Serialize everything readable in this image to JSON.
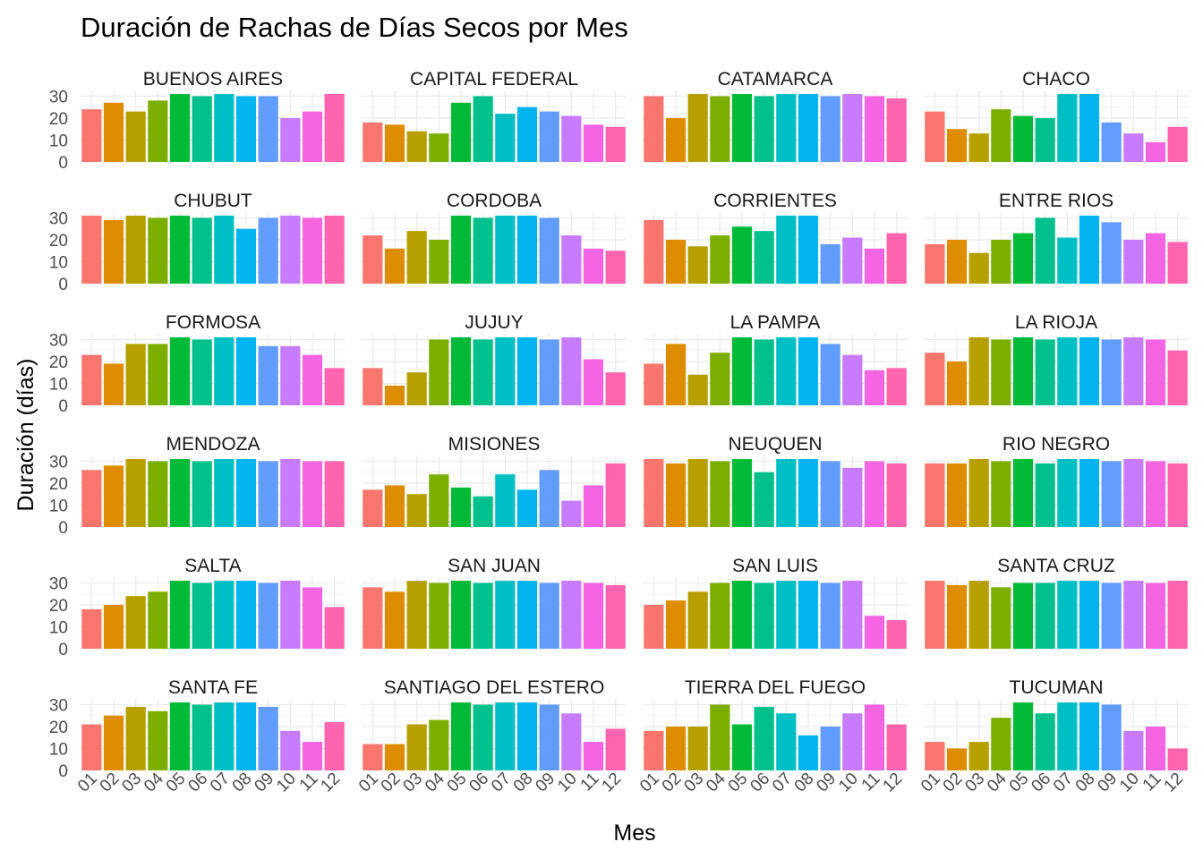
{
  "chart_data": {
    "type": "bar",
    "title": "Duración de Rachas de Días Secos por Mes",
    "xlabel": "Mes",
    "ylabel": "Duración (días)",
    "ylim": [
      0,
      31
    ],
    "yticks": [
      0,
      10,
      20,
      30
    ],
    "grid": true,
    "legend": "none",
    "categories": [
      "01",
      "02",
      "03",
      "04",
      "05",
      "06",
      "07",
      "08",
      "09",
      "10",
      "11",
      "12"
    ],
    "colors": [
      "#F8766D",
      "#DE8C00",
      "#B79F00",
      "#7CAE00",
      "#00BA38",
      "#00C08B",
      "#00BFC4",
      "#00B4F0",
      "#619CFF",
      "#C77CFF",
      "#F564E3",
      "#FF64B0"
    ],
    "panels": [
      {
        "name": "BUENOS AIRES",
        "values": [
          24,
          27,
          23,
          28,
          31,
          30,
          31,
          30,
          30,
          20,
          23,
          31
        ]
      },
      {
        "name": "CAPITAL FEDERAL",
        "values": [
          18,
          17,
          14,
          13,
          27,
          30,
          22,
          25,
          23,
          21,
          17,
          16
        ]
      },
      {
        "name": "CATAMARCA",
        "values": [
          30,
          20,
          31,
          30,
          31,
          30,
          31,
          31,
          30,
          31,
          30,
          29
        ]
      },
      {
        "name": "CHACO",
        "values": [
          23,
          15,
          13,
          24,
          21,
          20,
          31,
          31,
          18,
          13,
          9,
          16
        ]
      },
      {
        "name": "CHUBUT",
        "values": [
          31,
          29,
          31,
          30,
          31,
          30,
          31,
          25,
          30,
          31,
          30,
          31
        ]
      },
      {
        "name": "CORDOBA",
        "values": [
          22,
          16,
          24,
          20,
          31,
          30,
          31,
          31,
          30,
          22,
          16,
          15
        ]
      },
      {
        "name": "CORRIENTES",
        "values": [
          29,
          20,
          17,
          22,
          26,
          24,
          31,
          31,
          18,
          21,
          16,
          23
        ]
      },
      {
        "name": "ENTRE RIOS",
        "values": [
          18,
          20,
          14,
          20,
          23,
          30,
          21,
          31,
          28,
          20,
          23,
          19
        ]
      },
      {
        "name": "FORMOSA",
        "values": [
          23,
          19,
          28,
          28,
          31,
          30,
          31,
          31,
          27,
          27,
          23,
          17
        ]
      },
      {
        "name": "JUJUY",
        "values": [
          17,
          9,
          15,
          30,
          31,
          30,
          31,
          31,
          30,
          31,
          21,
          15
        ]
      },
      {
        "name": "LA PAMPA",
        "values": [
          19,
          28,
          14,
          24,
          31,
          30,
          31,
          31,
          28,
          23,
          16,
          17
        ]
      },
      {
        "name": "LA RIOJA",
        "values": [
          24,
          20,
          31,
          30,
          31,
          30,
          31,
          31,
          30,
          31,
          30,
          25
        ]
      },
      {
        "name": "MENDOZA",
        "values": [
          26,
          28,
          31,
          30,
          31,
          30,
          31,
          31,
          30,
          31,
          30,
          30
        ]
      },
      {
        "name": "MISIONES",
        "values": [
          17,
          19,
          15,
          24,
          18,
          14,
          24,
          17,
          26,
          12,
          19,
          29
        ]
      },
      {
        "name": "NEUQUEN",
        "values": [
          31,
          29,
          31,
          30,
          31,
          25,
          31,
          31,
          30,
          27,
          30,
          29
        ]
      },
      {
        "name": "RIO NEGRO",
        "values": [
          29,
          29,
          31,
          30,
          31,
          29,
          31,
          31,
          30,
          31,
          30,
          29
        ]
      },
      {
        "name": "SALTA",
        "values": [
          18,
          20,
          24,
          26,
          31,
          30,
          31,
          31,
          30,
          31,
          28,
          19
        ]
      },
      {
        "name": "SAN JUAN",
        "values": [
          28,
          26,
          31,
          30,
          31,
          30,
          31,
          31,
          30,
          31,
          30,
          29
        ]
      },
      {
        "name": "SAN LUIS",
        "values": [
          20,
          22,
          26,
          30,
          31,
          30,
          31,
          31,
          30,
          31,
          15,
          13
        ]
      },
      {
        "name": "SANTA CRUZ",
        "values": [
          31,
          29,
          31,
          28,
          30,
          30,
          31,
          31,
          30,
          31,
          30,
          31
        ]
      },
      {
        "name": "SANTA FE",
        "values": [
          21,
          25,
          29,
          27,
          31,
          30,
          31,
          31,
          29,
          18,
          13,
          22
        ]
      },
      {
        "name": "SANTIAGO DEL ESTERO",
        "values": [
          12,
          12,
          21,
          23,
          31,
          30,
          31,
          31,
          30,
          26,
          13,
          19
        ]
      },
      {
        "name": "TIERRA DEL FUEGO",
        "values": [
          18,
          20,
          20,
          30,
          21,
          29,
          26,
          16,
          20,
          26,
          30,
          21
        ]
      },
      {
        "name": "TUCUMAN",
        "values": [
          13,
          10,
          13,
          24,
          31,
          26,
          31,
          31,
          30,
          18,
          20,
          10
        ]
      }
    ]
  }
}
